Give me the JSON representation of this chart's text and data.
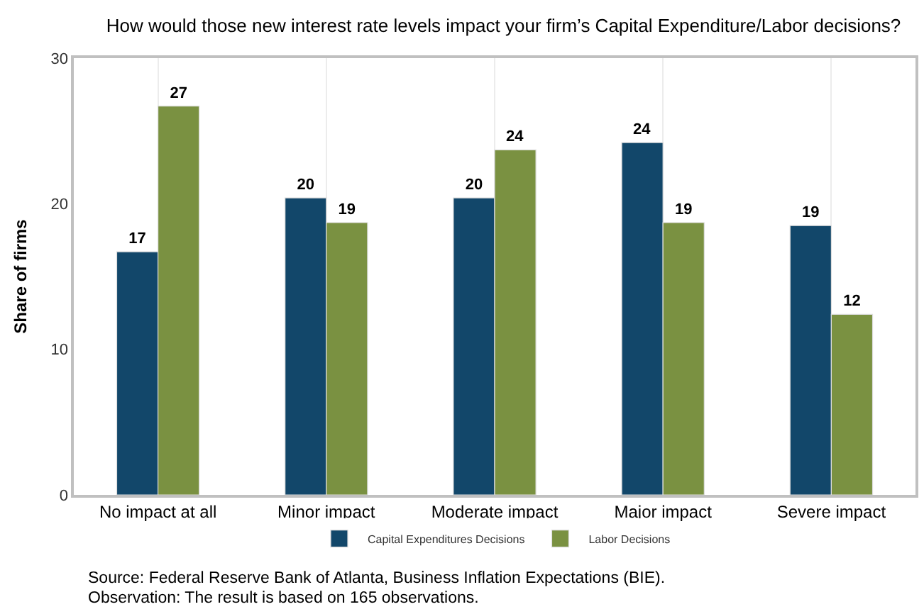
{
  "chart_data": {
    "type": "bar",
    "title": "How would those new interest rate levels impact your firm’s Capital Expenditure/Labor decisions?",
    "ylabel": "Share of firms",
    "categories": [
      "No impact at all",
      "Minor impact",
      "Moderate impact",
      "Major impact",
      "Severe impact"
    ],
    "series": [
      {
        "name": "Capital Expenditures Decisions",
        "color": "#12476a",
        "values": [
          16.7,
          20.4,
          20.4,
          24.2,
          18.5
        ],
        "value_labels": [
          "17",
          "20",
          "20",
          "24",
          "19"
        ]
      },
      {
        "name": "Labor Decisions",
        "color": "#7a9141",
        "values": [
          26.7,
          18.7,
          23.7,
          18.7,
          12.4
        ],
        "value_labels": [
          "27",
          "19",
          "24",
          "19",
          "12"
        ]
      }
    ],
    "ylim": [
      0,
      30
    ],
    "yticks": [
      0,
      10,
      20,
      30
    ],
    "grid": "x",
    "legend": "bottom",
    "annotations": [
      "Source: Federal Reserve Bank of Atlanta, Business Inflation Expectations (BIE).",
      "Observation: The result is based on 165 observations."
    ]
  }
}
